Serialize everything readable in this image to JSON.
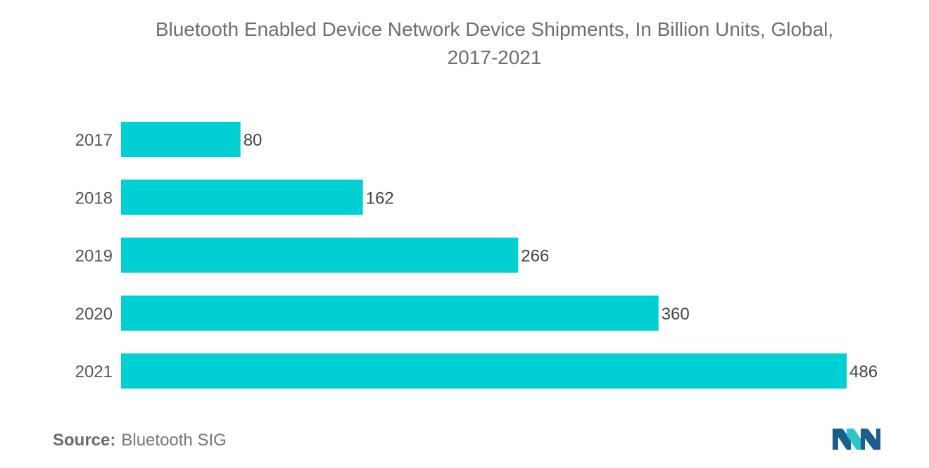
{
  "chart_data": {
    "type": "bar",
    "orientation": "horizontal",
    "title": "Bluetooth Enabled Device Network Device Shipments, In Billion Units, Global,",
    "subtitle": "2017-2021",
    "categories": [
      "2017",
      "2018",
      "2019",
      "2020",
      "2021"
    ],
    "values": [
      80,
      162,
      266,
      360,
      486
    ],
    "xlim": [
      0,
      486
    ],
    "xlabel": "",
    "ylabel": "",
    "grid": false,
    "bar_color": "#00cfd4",
    "data_labels": true
  },
  "source": {
    "label": "Source:",
    "value": "Bluetooth SIG"
  },
  "logo": {
    "icon": "mordor-intelligence-logo-icon",
    "colors": [
      "#1b5e8c",
      "#2cc5cc"
    ]
  }
}
